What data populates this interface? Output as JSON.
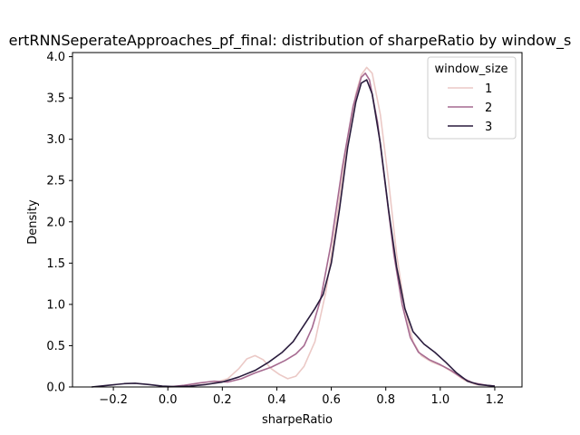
{
  "chart_data": {
    "type": "line",
    "title": "ertRNNSeperateApproaches_pf_final: distribution of sharpeRatio by window_s",
    "xlabel": "sharpeRatio",
    "ylabel": "Density",
    "xlim": [
      -0.35,
      1.3
    ],
    "ylim": [
      0,
      4.05
    ],
    "xticks": [
      -0.2,
      0.0,
      0.2,
      0.4,
      0.6,
      0.8,
      1.0,
      1.2
    ],
    "yticks": [
      0.0,
      0.5,
      1.0,
      1.5,
      2.0,
      2.5,
      3.0,
      3.5,
      4.0
    ],
    "xtick_labels": [
      "−0.2",
      "0.0",
      "0.2",
      "0.4",
      "0.6",
      "0.8",
      "1.0",
      "1.2"
    ],
    "ytick_labels": [
      "0.0",
      "0.5",
      "1.0",
      "1.5",
      "2.0",
      "2.5",
      "3.0",
      "3.5",
      "4.0"
    ],
    "grid": false,
    "legend": {
      "title": "window_size",
      "placement": "top-right"
    },
    "series": [
      {
        "name": "1",
        "color": "#ebc9c6",
        "points": [
          [
            0.0,
            0.0
          ],
          [
            0.08,
            0.01
          ],
          [
            0.16,
            0.04
          ],
          [
            0.22,
            0.1
          ],
          [
            0.26,
            0.22
          ],
          [
            0.29,
            0.34
          ],
          [
            0.32,
            0.38
          ],
          [
            0.35,
            0.33
          ],
          [
            0.38,
            0.22
          ],
          [
            0.41,
            0.15
          ],
          [
            0.44,
            0.1
          ],
          [
            0.47,
            0.13
          ],
          [
            0.5,
            0.25
          ],
          [
            0.54,
            0.55
          ],
          [
            0.58,
            1.15
          ],
          [
            0.62,
            2.05
          ],
          [
            0.66,
            3.0
          ],
          [
            0.69,
            3.55
          ],
          [
            0.71,
            3.78
          ],
          [
            0.73,
            3.87
          ],
          [
            0.75,
            3.8
          ],
          [
            0.78,
            3.3
          ],
          [
            0.81,
            2.5
          ],
          [
            0.84,
            1.6
          ],
          [
            0.87,
            0.95
          ],
          [
            0.9,
            0.55
          ],
          [
            0.93,
            0.38
          ],
          [
            0.97,
            0.3
          ],
          [
            1.01,
            0.25
          ],
          [
            1.05,
            0.17
          ],
          [
            1.09,
            0.08
          ],
          [
            1.13,
            0.03
          ],
          [
            1.2,
            0.01
          ]
        ]
      },
      {
        "name": "2",
        "color": "#a66a90",
        "points": [
          [
            0.0,
            0.0
          ],
          [
            0.06,
            0.02
          ],
          [
            0.12,
            0.05
          ],
          [
            0.17,
            0.07
          ],
          [
            0.22,
            0.06
          ],
          [
            0.27,
            0.1
          ],
          [
            0.32,
            0.17
          ],
          [
            0.38,
            0.24
          ],
          [
            0.43,
            0.32
          ],
          [
            0.47,
            0.4
          ],
          [
            0.5,
            0.5
          ],
          [
            0.53,
            0.72
          ],
          [
            0.56,
            1.05
          ],
          [
            0.6,
            1.75
          ],
          [
            0.64,
            2.65
          ],
          [
            0.68,
            3.4
          ],
          [
            0.71,
            3.75
          ],
          [
            0.725,
            3.8
          ],
          [
            0.74,
            3.72
          ],
          [
            0.77,
            3.2
          ],
          [
            0.8,
            2.4
          ],
          [
            0.83,
            1.6
          ],
          [
            0.86,
            1.0
          ],
          [
            0.89,
            0.6
          ],
          [
            0.92,
            0.42
          ],
          [
            0.96,
            0.33
          ],
          [
            1.0,
            0.27
          ],
          [
            1.04,
            0.2
          ],
          [
            1.08,
            0.11
          ],
          [
            1.12,
            0.05
          ],
          [
            1.17,
            0.02
          ],
          [
            1.2,
            0.01
          ]
        ]
      },
      {
        "name": "3",
        "color": "#2a1c3d",
        "points": [
          [
            -0.28,
            0.0
          ],
          [
            -0.22,
            0.02
          ],
          [
            -0.16,
            0.04
          ],
          [
            -0.12,
            0.045
          ],
          [
            -0.07,
            0.03
          ],
          [
            -0.02,
            0.01
          ],
          [
            0.02,
            0.005
          ],
          [
            0.08,
            0.01
          ],
          [
            0.14,
            0.03
          ],
          [
            0.2,
            0.06
          ],
          [
            0.26,
            0.12
          ],
          [
            0.32,
            0.2
          ],
          [
            0.37,
            0.3
          ],
          [
            0.42,
            0.42
          ],
          [
            0.46,
            0.55
          ],
          [
            0.5,
            0.75
          ],
          [
            0.54,
            0.95
          ],
          [
            0.57,
            1.12
          ],
          [
            0.6,
            1.5
          ],
          [
            0.63,
            2.15
          ],
          [
            0.66,
            2.9
          ],
          [
            0.69,
            3.45
          ],
          [
            0.71,
            3.68
          ],
          [
            0.73,
            3.72
          ],
          [
            0.75,
            3.55
          ],
          [
            0.78,
            2.95
          ],
          [
            0.81,
            2.15
          ],
          [
            0.84,
            1.45
          ],
          [
            0.87,
            0.95
          ],
          [
            0.9,
            0.67
          ],
          [
            0.94,
            0.52
          ],
          [
            0.98,
            0.42
          ],
          [
            1.02,
            0.3
          ],
          [
            1.06,
            0.17
          ],
          [
            1.1,
            0.07
          ],
          [
            1.14,
            0.03
          ],
          [
            1.2,
            0.01
          ]
        ]
      }
    ]
  }
}
